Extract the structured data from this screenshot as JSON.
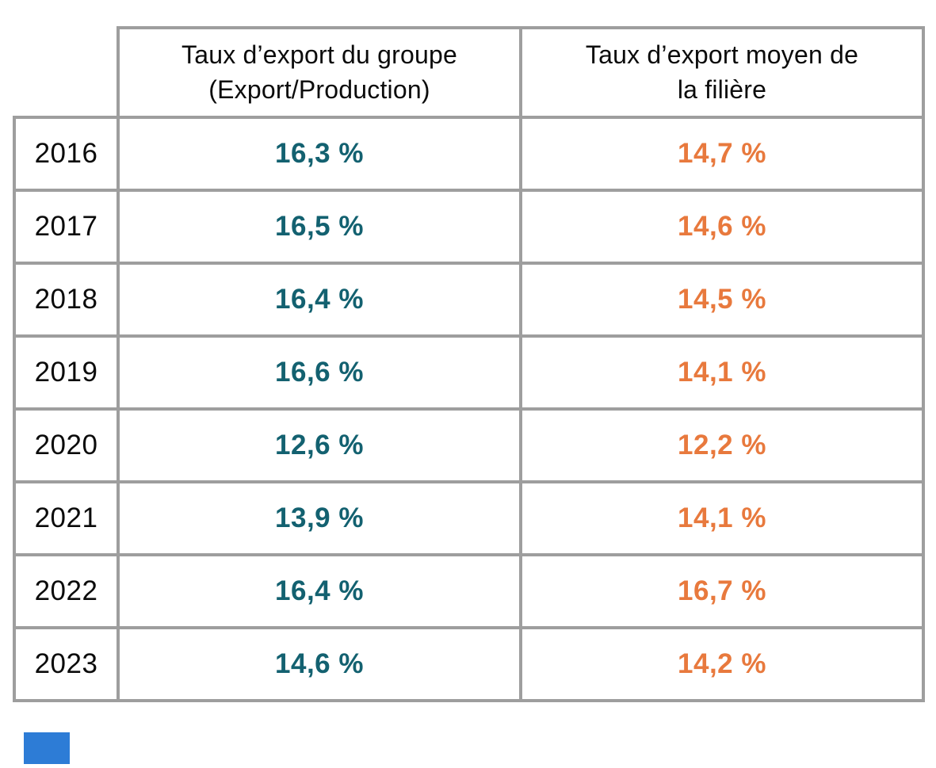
{
  "chart_data": {
    "type": "table",
    "title": "",
    "categories": [
      "2016",
      "2017",
      "2018",
      "2019",
      "2020",
      "2021",
      "2022",
      "2023"
    ],
    "series": [
      {
        "name": "Taux d’export du groupe (Export/Production)",
        "values": [
          16.3,
          16.5,
          16.4,
          16.6,
          12.6,
          13.9,
          16.4,
          14.6
        ],
        "unit": "%",
        "color": "#136170"
      },
      {
        "name": "Taux d’export moyen de la filière",
        "values": [
          14.7,
          14.6,
          14.5,
          14.1,
          12.2,
          14.1,
          16.7,
          14.2
        ],
        "unit": "%",
        "color": "#e8793d"
      }
    ],
    "layout": {
      "grid": "full-borders",
      "legend": "none",
      "number_format": "french-comma"
    }
  },
  "table": {
    "header": {
      "empty": "",
      "group": {
        "line1": "Taux d’export du groupe",
        "line2": "(Export/Production)"
      },
      "sector": {
        "line1": "Taux d’export moyen de",
        "line2": "la filière"
      }
    },
    "rows": [
      {
        "year": "2016",
        "group": "16,3 %",
        "sector": "14,7 %"
      },
      {
        "year": "2017",
        "group": "16,5 %",
        "sector": "14,6 %"
      },
      {
        "year": "2018",
        "group": "16,4 %",
        "sector": "14,5 %"
      },
      {
        "year": "2019",
        "group": "16,6 %",
        "sector": "14,1 %"
      },
      {
        "year": "2020",
        "group": "12,6 %",
        "sector": "12,2 %"
      },
      {
        "year": "2021",
        "group": "13,9 %",
        "sector": "14,1 %"
      },
      {
        "year": "2022",
        "group": "16,4 %",
        "sector": "16,7 %"
      },
      {
        "year": "2023",
        "group": "14,6 %",
        "sector": "14,2 %"
      }
    ]
  },
  "colors": {
    "group_value": "#136170",
    "sector_value": "#e8793d",
    "grid_border": "#9e9e9e",
    "text": "#0b0b0b",
    "decorative_square": "#2d7cd6",
    "background": "#ffffff"
  }
}
